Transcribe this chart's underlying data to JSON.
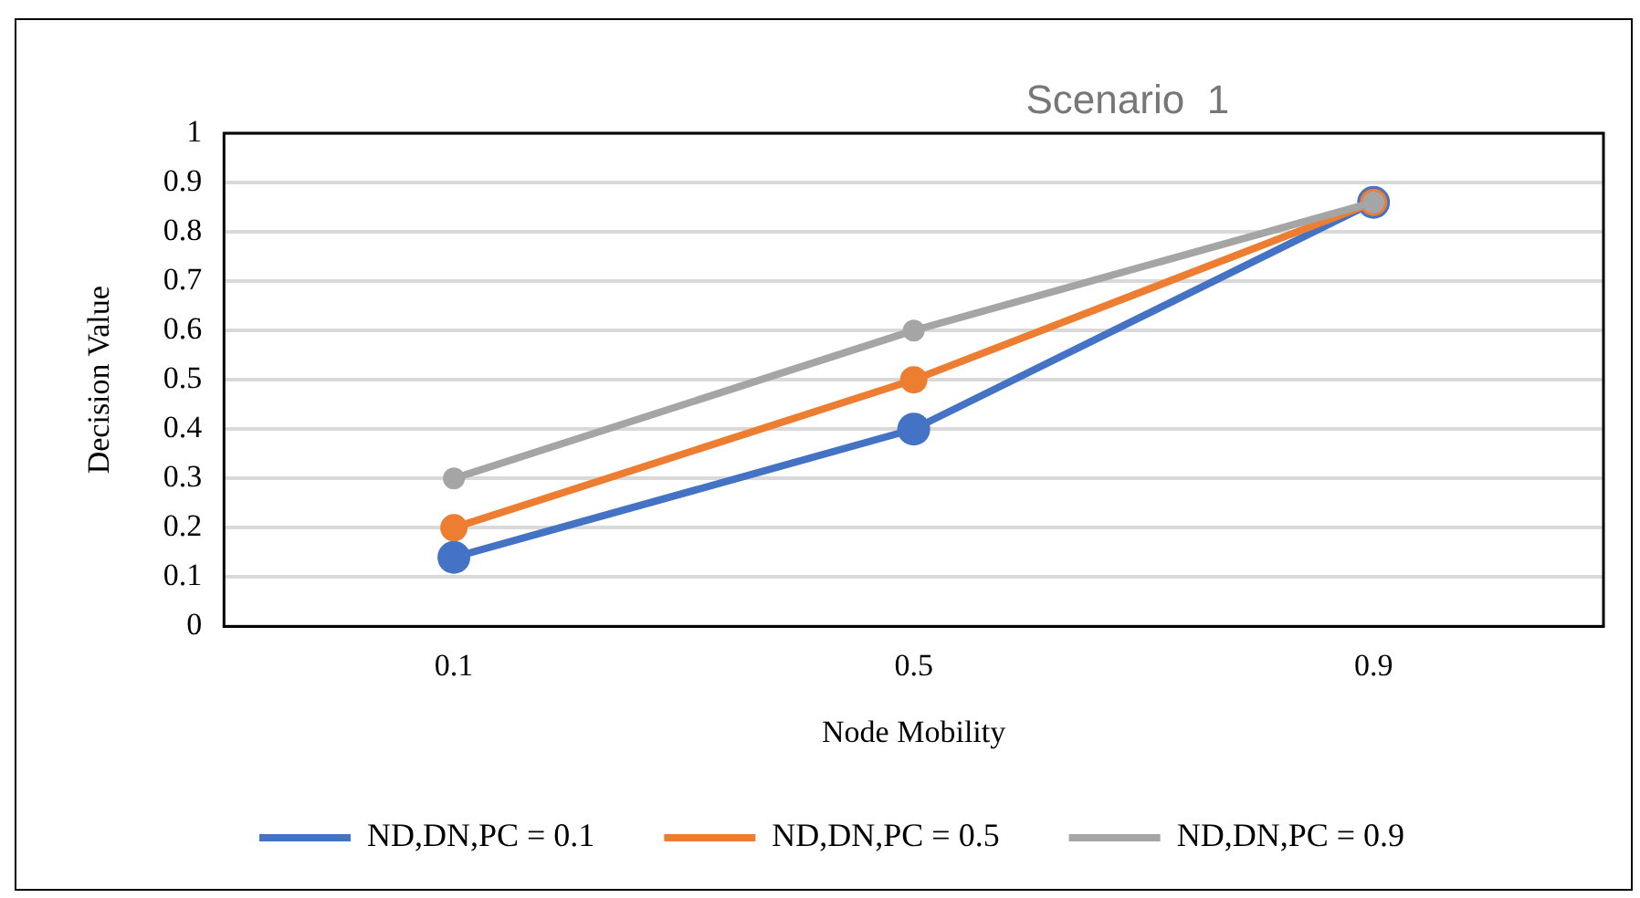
{
  "chart_data": {
    "type": "line",
    "title": "Scenario  1",
    "xlabel": "Node Mobility",
    "ylabel": "Decision Value",
    "categories": [
      "0.1",
      "0.5",
      "0.9"
    ],
    "series": [
      {
        "name": "ND,DN,PC = 0.1",
        "color": "#4472c4",
        "values": [
          0.14,
          0.4,
          0.86
        ]
      },
      {
        "name": "ND,DN,PC = 0.5",
        "color": "#ed7d31",
        "values": [
          0.2,
          0.5,
          0.86
        ]
      },
      {
        "name": "ND,DN,PC = 0.9",
        "color": "#a5a5a5",
        "values": [
          0.3,
          0.6,
          0.86
        ]
      }
    ],
    "ylim": [
      0,
      1
    ],
    "yticks": [
      0,
      0.1,
      0.2,
      0.3,
      0.4,
      0.5,
      0.6,
      0.7,
      0.8,
      0.9,
      1
    ],
    "grid": "y",
    "legend": "bottom",
    "marker": "circle",
    "line_style": "solid"
  }
}
